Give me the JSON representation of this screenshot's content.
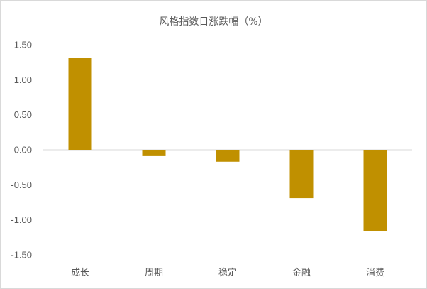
{
  "chart_data": {
    "type": "bar",
    "title": "风格指数日涨跌幅（%）",
    "categories": [
      "成长",
      "周期",
      "稳定",
      "金融",
      "消费"
    ],
    "values": [
      1.31,
      -0.08,
      -0.17,
      -0.69,
      -1.16
    ],
    "ylim": [
      -1.5,
      1.5
    ],
    "yticks": [
      "1.50",
      "1.00",
      "0.50",
      "0.00",
      "-0.50",
      "-1.00",
      "-1.50"
    ],
    "xlabel": "",
    "ylabel": "",
    "grid": false,
    "legend": "none",
    "bar_color": "#C09000",
    "axis_color": "#d9d9d9"
  }
}
